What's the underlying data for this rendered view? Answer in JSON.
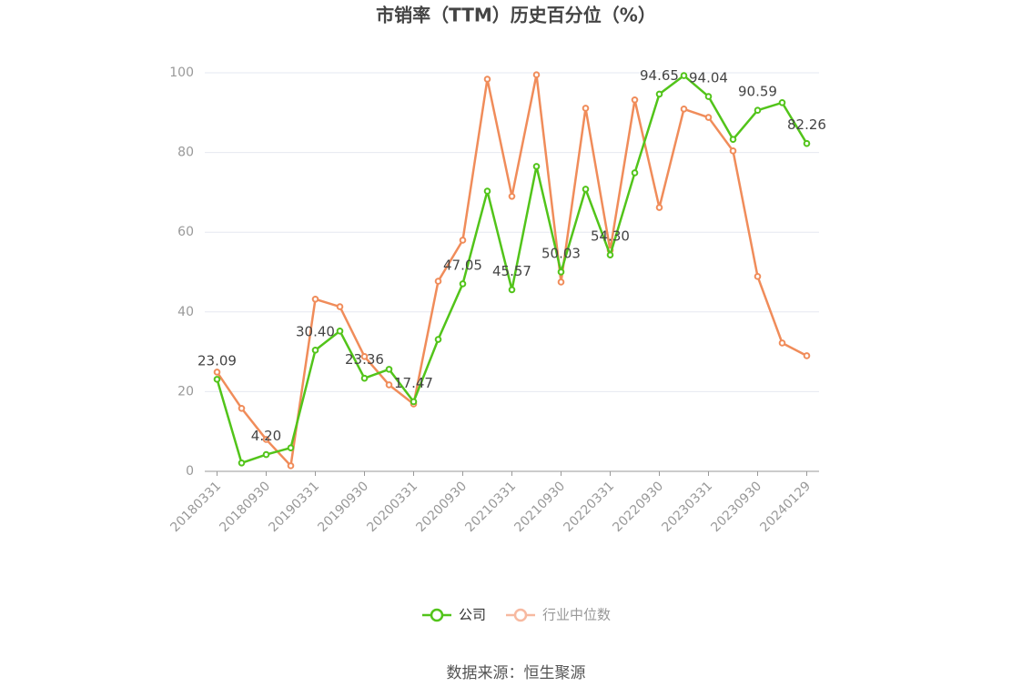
{
  "chart_data": {
    "type": "line",
    "title": "市销率（TTM）历史百分位（%）",
    "categories": [
      "20180331",
      null,
      "20180930",
      null,
      "20190331",
      null,
      "20190930",
      null,
      "20200331",
      null,
      "20200930",
      null,
      "20210331",
      null,
      "20210930",
      null,
      "20220331",
      null,
      "20220930",
      null,
      "20230331",
      null,
      "20230930",
      null,
      "20240129"
    ],
    "series": [
      {
        "name": "公司",
        "color": "#52c41a",
        "values": [
          23.09,
          2.1,
          4.2,
          5.9,
          30.4,
          35.2,
          23.36,
          25.6,
          17.47,
          33.1,
          47.05,
          70.3,
          45.57,
          76.5,
          50.03,
          70.8,
          54.3,
          74.9,
          94.65,
          99.3,
          94.04,
          83.3,
          90.59,
          92.5,
          82.26
        ],
        "value_labels": [
          "23.09",
          null,
          "4.20",
          null,
          "30.40",
          null,
          "23.36",
          null,
          "17.47",
          null,
          "47.05",
          null,
          "45.57",
          null,
          "50.03",
          null,
          "54.30",
          null,
          "94.65",
          null,
          "94.04",
          null,
          "90.59",
          null,
          "82.26"
        ]
      },
      {
        "name": "行业中位数",
        "color": "#f08c5a",
        "values": [
          24.9,
          15.8,
          8.0,
          1.4,
          43.2,
          41.3,
          28.8,
          21.7,
          16.9,
          47.7,
          58.0,
          98.4,
          69.0,
          99.5,
          47.5,
          91.1,
          55.5,
          93.2,
          66.2,
          90.9,
          88.8,
          80.4,
          48.9,
          32.2,
          29.0
        ]
      }
    ],
    "ylim": [
      0,
      100
    ],
    "yticks": [
      0,
      20,
      40,
      60,
      80,
      100
    ],
    "grid": true,
    "legend": "bottom",
    "source": "数据来源：恒生聚源"
  }
}
